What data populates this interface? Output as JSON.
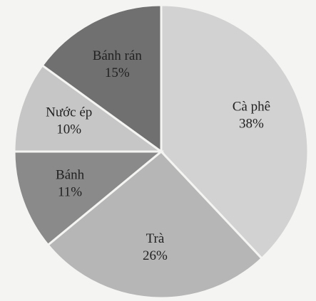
{
  "chart_data": {
    "type": "pie",
    "categories": [
      "Cà phê",
      "Trà",
      "Bánh",
      "Nước ép",
      "Bánh rán"
    ],
    "values": [
      38,
      26,
      11,
      10,
      15
    ],
    "value_labels": [
      "38%",
      "26%",
      "11%",
      "10%",
      "15%"
    ],
    "colors": [
      "#d2d2d2",
      "#b6b6b6",
      "#8a8a8a",
      "#c6c6c6",
      "#707070"
    ]
  }
}
